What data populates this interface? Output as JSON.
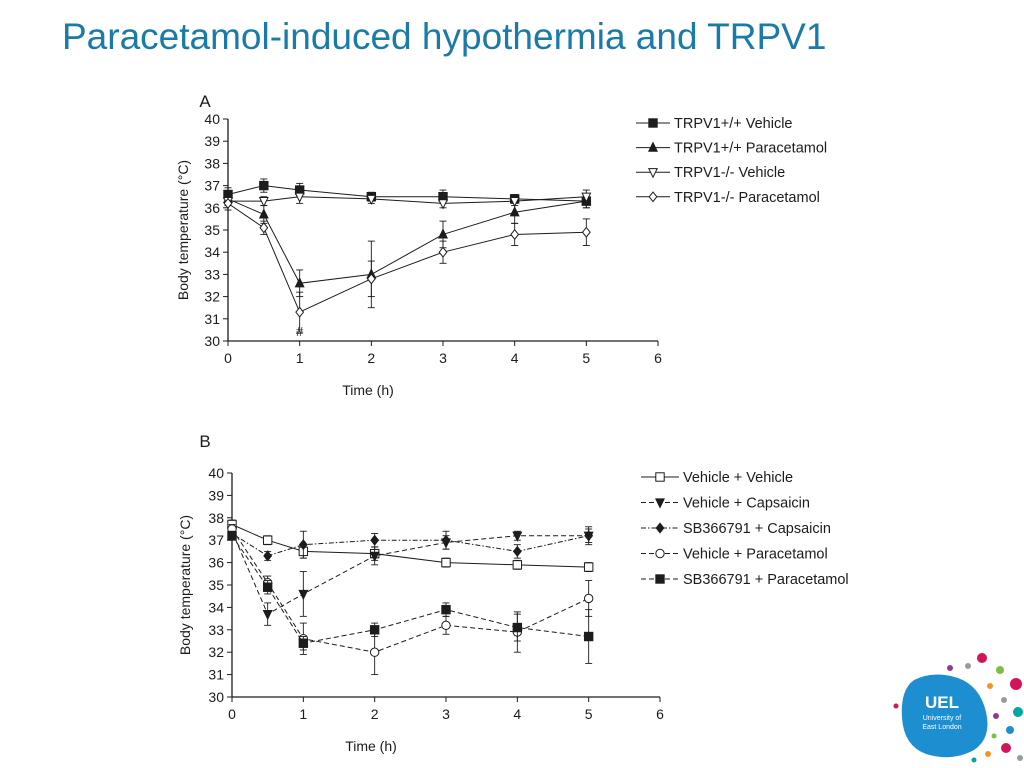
{
  "slide": {
    "title": "Paracetamol-induced hypothermia and TRPV1"
  },
  "logo": {
    "text": [
      "UEL",
      "University of",
      "East London"
    ],
    "blob_color": "#1d8fd1"
  },
  "chart_data": [
    {
      "type": "line",
      "panel_label": "A",
      "xlabel": "Time (h)",
      "ylabel": "Body temperature (°C)",
      "xlim": [
        0,
        6
      ],
      "ylim": [
        30,
        40
      ],
      "xticks": [
        0,
        1,
        2,
        3,
        4,
        5,
        6
      ],
      "yticks": [
        30,
        31,
        32,
        33,
        34,
        35,
        36,
        37,
        38,
        39,
        40
      ],
      "grid": false,
      "legend_position": "top-right",
      "annotations": [
        {
          "text": "#",
          "x": 1,
          "y": 30.4
        }
      ],
      "series": [
        {
          "name": "TRPV1+/+ Vehicle",
          "marker": "square-filled",
          "dash": "solid",
          "x": [
            0,
            0.5,
            1,
            2,
            3,
            4,
            5
          ],
          "y": [
            36.6,
            37.0,
            36.8,
            36.5,
            36.5,
            36.4,
            36.3
          ],
          "err": [
            0.3,
            0.3,
            0.3,
            0.2,
            0.3,
            0.2,
            0.3
          ]
        },
        {
          "name": "TRPV1+/+ Paracetamol",
          "marker": "triangle-up-filled",
          "dash": "solid",
          "x": [
            0,
            0.5,
            1,
            2,
            3,
            4,
            5
          ],
          "y": [
            36.4,
            35.7,
            32.6,
            33.0,
            34.8,
            35.8,
            36.3
          ],
          "err": [
            0.3,
            0.4,
            0.6,
            1.5,
            0.6,
            0.5,
            0.3
          ]
        },
        {
          "name": "TRPV1-/- Vehicle",
          "marker": "triangle-down-open",
          "dash": "solid",
          "x": [
            0,
            0.5,
            1,
            2,
            3,
            4,
            5
          ],
          "y": [
            36.3,
            36.3,
            36.5,
            36.4,
            36.2,
            36.3,
            36.5
          ],
          "err": [
            0.2,
            0.2,
            0.3,
            0.2,
            0.2,
            0.2,
            0.3
          ]
        },
        {
          "name": "TRPV1-/- Paracetamol",
          "marker": "diamond-open",
          "dash": "solid",
          "x": [
            0,
            0.5,
            1,
            2,
            3,
            4,
            5
          ],
          "y": [
            36.2,
            35.1,
            31.3,
            32.8,
            34.0,
            34.8,
            34.9
          ],
          "err": [
            0.3,
            0.3,
            0.9,
            0.8,
            0.5,
            0.5,
            0.6
          ]
        }
      ]
    },
    {
      "type": "line",
      "panel_label": "B",
      "xlabel": "Time (h)",
      "ylabel": "Body temperature (°C)",
      "xlim": [
        0,
        6
      ],
      "ylim": [
        30,
        40
      ],
      "xticks": [
        0,
        1,
        2,
        3,
        4,
        5,
        6
      ],
      "yticks": [
        30,
        31,
        32,
        33,
        34,
        35,
        36,
        37,
        38,
        39,
        40
      ],
      "grid": false,
      "legend_position": "top-right",
      "series": [
        {
          "name": "Vehicle + Vehicle",
          "marker": "square-open",
          "dash": "solid",
          "x": [
            0,
            0.5,
            1,
            2,
            3,
            4,
            5
          ],
          "y": [
            37.7,
            37.0,
            36.5,
            36.4,
            36.0,
            35.9,
            35.8
          ],
          "err": [
            0.2,
            0.2,
            0.3,
            0.3,
            0.2,
            0.2,
            0.2
          ]
        },
        {
          "name": "Vehicle + Capsaicin",
          "marker": "triangle-down-filled",
          "dash": "dashed",
          "x": [
            0,
            0.5,
            1,
            2,
            3,
            4,
            5
          ],
          "y": [
            37.4,
            33.7,
            34.6,
            36.3,
            36.9,
            37.2,
            37.2
          ],
          "err": [
            0.2,
            0.5,
            1.0,
            0.4,
            0.3,
            0.2,
            0.4
          ]
        },
        {
          "name": "SB366791 + Capsaicin",
          "marker": "diamond-filled",
          "dash": "dashdot",
          "x": [
            0,
            0.5,
            1,
            2,
            3,
            4,
            5
          ],
          "y": [
            37.3,
            36.3,
            36.8,
            37.0,
            37.0,
            36.5,
            37.2
          ],
          "err": [
            0.2,
            0.2,
            0.6,
            0.3,
            0.4,
            0.3,
            0.3
          ]
        },
        {
          "name": "Vehicle + Paracetamol",
          "marker": "circle-open",
          "dash": "dashed",
          "x": [
            0,
            0.5,
            1,
            2,
            3,
            4,
            5
          ],
          "y": [
            37.5,
            35.1,
            32.6,
            32.0,
            33.2,
            32.9,
            34.4
          ],
          "err": [
            0.2,
            0.3,
            0.7,
            1.0,
            0.4,
            0.9,
            0.8
          ]
        },
        {
          "name": "SB366791 + Paracetamol",
          "marker": "square-filled",
          "dash": "dashed",
          "x": [
            0,
            0.5,
            1,
            2,
            3,
            4,
            5
          ],
          "y": [
            37.2,
            34.9,
            32.4,
            33.0,
            33.9,
            33.1,
            32.7
          ],
          "err": [
            0.2,
            0.3,
            0.3,
            0.3,
            0.3,
            0.6,
            1.2
          ]
        }
      ]
    }
  ]
}
